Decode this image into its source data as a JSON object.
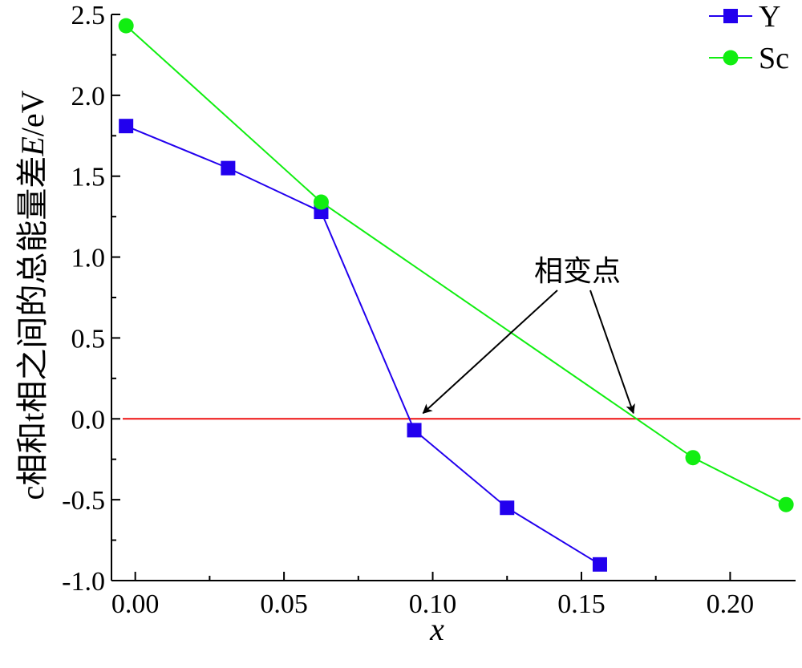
{
  "chart_data": {
    "type": "line",
    "title": "",
    "xlabel": "x",
    "ylabel_prefix": "c相和t相之间的总能量差",
    "ylabel_var": "E",
    "ylabel_unit": "/eV",
    "xlim": [
      -0.008,
      0.222
    ],
    "ylim": [
      -1.0,
      2.5
    ],
    "x_ticks": [
      0.0,
      0.05,
      0.1,
      0.15,
      0.2
    ],
    "x_tick_labels": [
      "0.00",
      "0.05",
      "0.10",
      "0.15",
      "0.20"
    ],
    "x_minor_ticks": [
      0.025,
      0.075,
      0.125,
      0.175
    ],
    "y_ticks": [
      2.5,
      2.0,
      1.5,
      1.0,
      0.5,
      0.0,
      -0.5,
      -1.0
    ],
    "y_tick_labels": [
      "2.5",
      "2.0",
      "1.5",
      "1.0",
      "0.5",
      "0.0",
      "-0.5",
      "-1.0"
    ],
    "y_minor_ticks": [
      2.25,
      1.75,
      1.25,
      0.75,
      0.25,
      -0.25,
      -0.75
    ],
    "legend_position": "top-right",
    "grid": false,
    "series": [
      {
        "name": "Y",
        "color": "#2200ee",
        "marker": "square",
        "x": [
          -0.0031,
          0.0312,
          0.0625,
          0.0938,
          0.125,
          0.1562
        ],
        "y": [
          1.81,
          1.55,
          1.28,
          -0.07,
          -0.55,
          -0.9
        ]
      },
      {
        "name": "Sc",
        "color": "#11ee11",
        "marker": "circle",
        "x": [
          -0.0031,
          0.0625,
          0.1875,
          0.2188
        ],
        "y": [
          2.43,
          1.34,
          -0.24,
          -0.53
        ]
      }
    ],
    "reference_line": {
      "y": 0.0,
      "color": "#ee1111"
    },
    "annotation": {
      "text": "相变点",
      "arrow_targets": [
        {
          "x": 0.0935,
          "y": 0.0
        },
        {
          "x": 0.1675,
          "y": 0.0
        }
      ]
    }
  }
}
